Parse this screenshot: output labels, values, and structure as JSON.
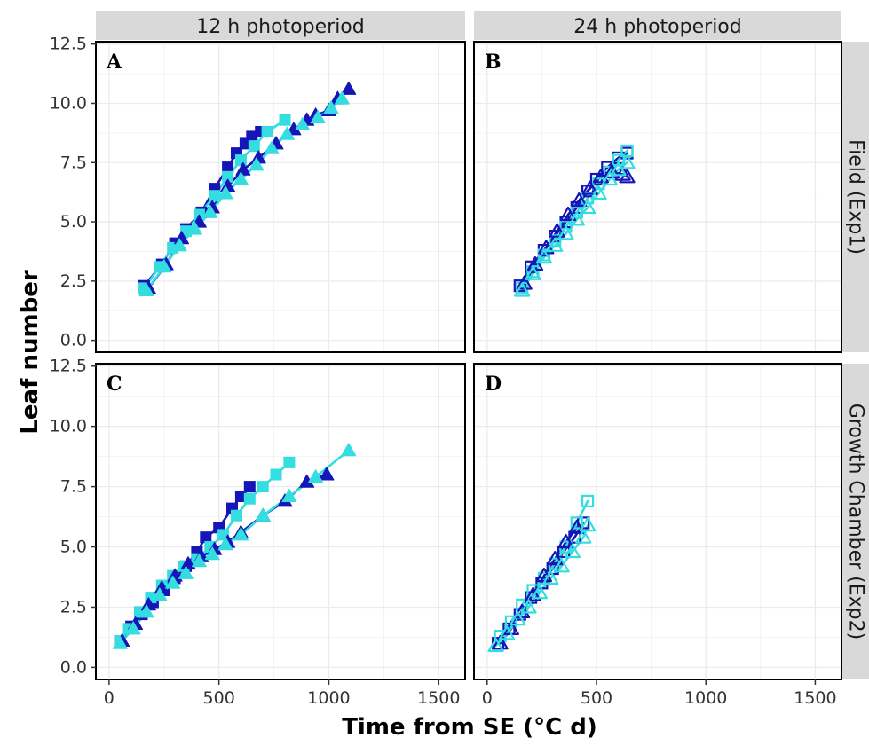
{
  "chart_data": {
    "type": "line",
    "xlabel": "Time from SE (°C d)",
    "ylabel": "Leaf number",
    "xlim": [
      -60,
      1620
    ],
    "ylim": [
      -0.5,
      12.6
    ],
    "xticks": [
      0,
      500,
      1000,
      1500
    ],
    "yticks": [
      "0.0",
      "2.5",
      "5.0",
      "7.5",
      "10.0",
      "12.5"
    ],
    "col_strips": [
      "12 h photoperiod",
      "24 h photoperiod"
    ],
    "row_strips": [
      "Field (Exp1)",
      "Growth Chamber (Exp2)"
    ],
    "colors": {
      "dark": "#1515b8",
      "light": "#33dde0",
      "strip_bg": "#d9d9d9",
      "grid": "#ebebeb"
    },
    "panels": [
      {
        "label": "A",
        "series": [
          {
            "color": "dark",
            "marker": "square",
            "filled": true,
            "x": [
              160,
              240,
              300,
              350,
              420,
              480,
              540,
              580,
              620,
              650,
              690
            ],
            "y": [
              2.3,
              3.2,
              4.1,
              4.7,
              5.4,
              6.4,
              7.3,
              7.9,
              8.3,
              8.6,
              8.8
            ]
          },
          {
            "color": "light",
            "marker": "square",
            "filled": true,
            "x": [
              160,
              230,
              290,
              350,
              410,
              480,
              540,
              600,
              660,
              720,
              800
            ],
            "y": [
              2.2,
              3.1,
              3.9,
              4.6,
              5.3,
              6.1,
              6.9,
              7.6,
              8.2,
              8.8,
              9.3
            ]
          },
          {
            "color": "dark",
            "marker": "triangle",
            "filled": true,
            "x": [
              180,
              260,
              330,
              410,
              470,
              540,
              610,
              680,
              760,
              840,
              900,
              940,
              1000,
              1040,
              1090
            ],
            "y": [
              2.2,
              3.2,
              4.3,
              5.0,
              5.6,
              6.5,
              7.2,
              7.7,
              8.3,
              8.9,
              9.3,
              9.5,
              9.7,
              10.2,
              10.6
            ]
          },
          {
            "color": "light",
            "marker": "triangle",
            "filled": true,
            "x": [
              170,
              250,
              320,
              390,
              460,
              530,
              600,
              670,
              740,
              810,
              880,
              950,
              1010,
              1060
            ],
            "y": [
              2.1,
              3.1,
              4.0,
              4.7,
              5.4,
              6.2,
              6.8,
              7.4,
              8.1,
              8.7,
              9.1,
              9.4,
              9.8,
              10.2
            ]
          }
        ]
      },
      {
        "label": "B",
        "series": [
          {
            "color": "dark",
            "marker": "square",
            "filled": false,
            "x": [
              150,
              200,
              260,
              310,
              360,
              410,
              460,
              500,
              550,
              600,
              640
            ],
            "y": [
              2.3,
              3.1,
              3.8,
              4.4,
              5.0,
              5.6,
              6.3,
              6.8,
              7.3,
              7.7,
              7.9
            ]
          },
          {
            "color": "light",
            "marker": "square",
            "filled": false,
            "x": [
              160,
              210,
              260,
              310,
              360,
              410,
              460,
              510,
              560,
              600,
              640
            ],
            "y": [
              2.2,
              2.9,
              3.6,
              4.2,
              4.8,
              5.4,
              6.0,
              6.6,
              7.1,
              7.6,
              8.0
            ]
          },
          {
            "color": "dark",
            "marker": "triangle",
            "filled": false,
            "x": [
              170,
              220,
              270,
              320,
              370,
              420,
              470,
              520,
              570,
              620,
              640
            ],
            "y": [
              2.4,
              3.2,
              3.9,
              4.6,
              5.3,
              5.9,
              6.4,
              6.9,
              7.1,
              7.0,
              6.9
            ]
          },
          {
            "color": "light",
            "marker": "triangle",
            "filled": false,
            "x": [
              160,
              210,
              260,
              310,
              360,
              410,
              460,
              510,
              560,
              600,
              640
            ],
            "y": [
              2.1,
              2.8,
              3.5,
              4.0,
              4.5,
              5.1,
              5.6,
              6.2,
              6.8,
              7.2,
              7.5
            ]
          }
        ]
      },
      {
        "label": "C",
        "series": [
          {
            "color": "dark",
            "marker": "square",
            "filled": true,
            "x": [
              50,
              100,
              150,
              200,
              250,
              300,
              350,
              400,
              440,
              500,
              560,
              600,
              640
            ],
            "y": [
              1.1,
              1.7,
              2.2,
              2.7,
              3.2,
              3.7,
              4.2,
              4.8,
              5.4,
              5.8,
              6.6,
              7.1,
              7.5
            ]
          },
          {
            "color": "light",
            "marker": "square",
            "filled": true,
            "x": [
              50,
              90,
              140,
              190,
              240,
              290,
              340,
              400,
              460,
              520,
              580,
              640,
              700,
              760,
              820
            ],
            "y": [
              1.1,
              1.6,
              2.3,
              2.9,
              3.4,
              3.8,
              4.2,
              4.5,
              5.0,
              5.5,
              6.3,
              7.0,
              7.5,
              8.0,
              8.5
            ]
          },
          {
            "color": "dark",
            "marker": "triangle",
            "filled": true,
            "x": [
              60,
              120,
              180,
              240,
              300,
              360,
              420,
              480,
              540,
              600,
              700,
              800,
              900,
              990
            ],
            "y": [
              1.1,
              1.8,
              2.6,
              3.3,
              3.8,
              4.3,
              4.6,
              4.9,
              5.2,
              5.6,
              6.3,
              6.9,
              7.7,
              8.0
            ]
          },
          {
            "color": "light",
            "marker": "triangle",
            "filled": true,
            "x": [
              50,
              110,
              170,
              230,
              290,
              350,
              410,
              470,
              530,
              600,
              700,
              820,
              940,
              1090
            ],
            "y": [
              1.0,
              1.6,
              2.3,
              3.0,
              3.5,
              3.9,
              4.4,
              4.7,
              5.1,
              5.5,
              6.3,
              7.1,
              7.9,
              9.0
            ]
          }
        ]
      },
      {
        "label": "D",
        "series": [
          {
            "color": "dark",
            "marker": "square",
            "filled": false,
            "x": [
              50,
              100,
              150,
              200,
              250,
              300,
              350,
              400,
              440
            ],
            "y": [
              1.0,
              1.6,
              2.2,
              2.9,
              3.5,
              4.1,
              4.8,
              5.4,
              6.0
            ]
          },
          {
            "color": "light",
            "marker": "square",
            "filled": false,
            "x": [
              60,
              110,
              160,
              210,
              260,
              310,
              360,
              410,
              460
            ],
            "y": [
              1.3,
              1.9,
              2.6,
              3.2,
              3.7,
              4.3,
              5.0,
              6.0,
              6.9
            ]
          },
          {
            "color": "dark",
            "marker": "triangle",
            "filled": false,
            "x": [
              60,
              110,
              160,
              210,
              260,
              310,
              360,
              410
            ],
            "y": [
              1.0,
              1.6,
              2.3,
              3.0,
              3.8,
              4.5,
              5.2,
              5.8
            ]
          },
          {
            "color": "light",
            "marker": "triangle",
            "filled": false,
            "x": [
              40,
              90,
              140,
              190,
              240,
              290,
              340,
              390,
              440,
              460
            ],
            "y": [
              0.9,
              1.4,
              2.0,
              2.5,
              3.1,
              3.7,
              4.2,
              4.8,
              5.4,
              5.9
            ]
          }
        ]
      }
    ]
  }
}
